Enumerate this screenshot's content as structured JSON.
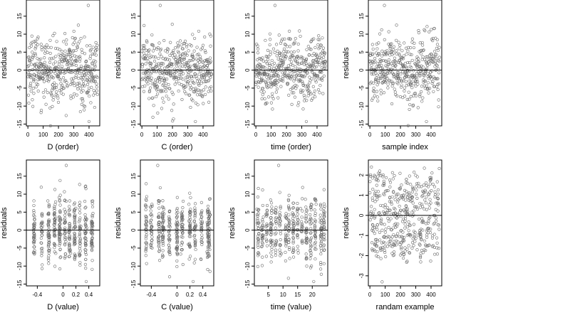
{
  "figure": {
    "layout": "2 rows x 4 columns of residual scatter plots with a horizontal reference line at 0",
    "point_style": "open circle, grey",
    "reference_line": 0
  },
  "chart_data": [
    {
      "type": "scatter",
      "xlabel": "D (order)",
      "ylabel": "residuals",
      "xticks": [
        0,
        100,
        200,
        300,
        400
      ],
      "yticks": [
        -15,
        -10,
        -5,
        0,
        5,
        10,
        15
      ],
      "xlim": [
        -10,
        470
      ],
      "ylim": [
        -15.5,
        19.5
      ],
      "n_points": 450,
      "pattern": "order",
      "highlights": [
        {
          "x": 395,
          "y": 18
        },
        {
          "x": 400,
          "y": -14.3
        },
        {
          "x": 330,
          "y": 12.5
        }
      ]
    },
    {
      "type": "scatter",
      "xlabel": "C (order)",
      "ylabel": "residuals",
      "xticks": [
        0,
        100,
        200,
        300,
        400
      ],
      "yticks": [
        -15,
        -10,
        -5,
        0,
        5,
        10,
        15
      ],
      "xlim": [
        -10,
        470
      ],
      "ylim": [
        -15.5,
        19.5
      ],
      "n_points": 450,
      "pattern": "order",
      "highlights": [
        {
          "x": 120,
          "y": 18
        },
        {
          "x": 350,
          "y": -14.3
        }
      ]
    },
    {
      "type": "scatter",
      "xlabel": "time (order)",
      "ylabel": "residuals",
      "xticks": [
        0,
        100,
        200,
        300,
        400
      ],
      "yticks": [
        -15,
        -10,
        -5,
        0,
        5,
        10,
        15
      ],
      "xlim": [
        -10,
        470
      ],
      "ylim": [
        -15.5,
        19.5
      ],
      "n_points": 450,
      "pattern": "order",
      "highlights": [
        {
          "x": 125,
          "y": 18
        },
        {
          "x": 330,
          "y": -14.3
        }
      ]
    },
    {
      "type": "scatter",
      "xlabel": "sample index",
      "ylabel": "residuals",
      "xticks": [
        0,
        100,
        200,
        300,
        400
      ],
      "yticks": [
        -15,
        -10,
        -5,
        0,
        5,
        10,
        15
      ],
      "xlim": [
        -10,
        470
      ],
      "ylim": [
        -15.5,
        19.5
      ],
      "n_points": 450,
      "pattern": "order",
      "highlights": [
        {
          "x": 95,
          "y": 18
        },
        {
          "x": 370,
          "y": -14.3
        }
      ]
    },
    {
      "type": "scatter",
      "xlabel": "D (value)",
      "ylabel": "residuals",
      "xticks": [
        -0.4,
        0,
        0.2,
        0.4
      ],
      "yticks": [
        -15,
        -10,
        -5,
        0,
        5,
        10,
        15
      ],
      "xlim": [
        -0.57,
        0.57
      ],
      "ylim": [
        -15.5,
        19.5
      ],
      "n_points": 450,
      "pattern": "clustered",
      "cluster_x": [
        -0.45,
        -0.33,
        -0.22,
        -0.13,
        -0.05,
        0.03,
        0.1,
        0.18,
        0.26,
        0.35,
        0.45
      ],
      "highlights": [
        {
          "x": 0.05,
          "y": 18
        },
        {
          "x": 0.36,
          "y": -14.3
        }
      ]
    },
    {
      "type": "scatter",
      "xlabel": "C (value)",
      "ylabel": "residuals",
      "xticks": [
        -0.4,
        0,
        0.2,
        0.4
      ],
      "yticks": [
        -15,
        -10,
        -5,
        0,
        5,
        10,
        15
      ],
      "xlim": [
        -0.57,
        0.57
      ],
      "ylim": [
        -15.5,
        19.5
      ],
      "n_points": 450,
      "pattern": "clustered",
      "cluster_x": [
        -0.48,
        -0.4,
        -0.28,
        -0.22,
        -0.12,
        0,
        0.08,
        0.2,
        0.28,
        0.38,
        0.48,
        0.5
      ],
      "highlights": [
        {
          "x": -0.3,
          "y": 18
        },
        {
          "x": 0.25,
          "y": -14.3
        }
      ]
    },
    {
      "type": "scatter",
      "xlabel": "time (value)",
      "ylabel": "residuals",
      "xticks": [
        5,
        10,
        15,
        20
      ],
      "yticks": [
        -15,
        -10,
        -5,
        0,
        5,
        10,
        15
      ],
      "xlim": [
        0.2,
        25.3
      ],
      "ylim": [
        -15.5,
        19.5
      ],
      "n_points": 450,
      "pattern": "clustered",
      "cluster_x": [
        1.5,
        3,
        4.5,
        6,
        7.5,
        9,
        11,
        12,
        13.5,
        15,
        16.5,
        18,
        19.5,
        21,
        23,
        24
      ],
      "highlights": [
        {
          "x": 8.5,
          "y": 18
        },
        {
          "x": 20.5,
          "y": -14.3
        }
      ]
    },
    {
      "type": "scatter",
      "xlabel": "randam example",
      "ylabel": "residuals",
      "xticks": [
        0,
        100,
        200,
        300,
        400
      ],
      "yticks": [
        -3,
        -2,
        -1,
        0,
        1,
        2
      ],
      "xlim": [
        -10,
        470
      ],
      "ylim": [
        -3.5,
        2.75
      ],
      "n_points": 450,
      "pattern": "uniform",
      "highlights": [
        {
          "x": 10,
          "y": 2.4
        },
        {
          "x": 80,
          "y": -3.3
        }
      ]
    }
  ]
}
